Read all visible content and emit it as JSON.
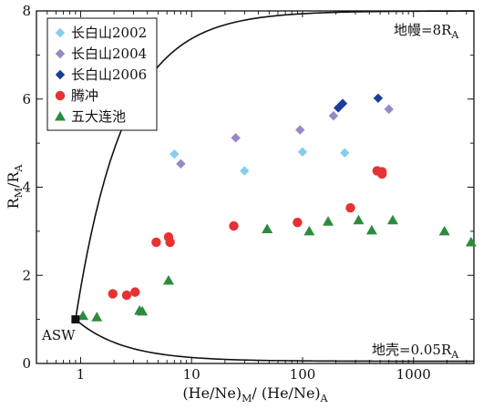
{
  "chart_data": {
    "type": "scatter",
    "xscale": "log",
    "xlim": [
      0.4,
      3500
    ],
    "ylim": [
      0,
      8
    ],
    "x_ticks": [
      {
        "value": 1,
        "label": "1"
      },
      {
        "value": 10,
        "label": "10"
      },
      {
        "value": 100,
        "label": "100"
      },
      {
        "value": 1000,
        "label": "1000"
      }
    ],
    "y_ticks": [
      {
        "value": 0,
        "label": "0"
      },
      {
        "value": 2,
        "label": "2"
      },
      {
        "value": 4,
        "label": "4"
      },
      {
        "value": 6,
        "label": "6"
      },
      {
        "value": 8,
        "label": "8"
      }
    ],
    "xlabel": {
      "main": "(He/Ne)",
      "sub1": "M",
      "mid": "/ (He/Ne)",
      "sub2": "A"
    },
    "ylabel": {
      "main": "R",
      "sub1": "M",
      "mid": "/R",
      "sub2": "A"
    },
    "legend_position": "top-left",
    "series": [
      {
        "name": "长白山2002",
        "marker": "diamond",
        "color": "#88ccee",
        "points": [
          [
            7,
            4.75
          ],
          [
            30,
            4.37
          ],
          [
            100,
            4.8
          ],
          [
            240,
            4.78
          ]
        ]
      },
      {
        "name": "长白山2004",
        "marker": "diamond",
        "color": "#9988c4",
        "points": [
          [
            8,
            4.53
          ],
          [
            25,
            5.12
          ],
          [
            95,
            5.3
          ],
          [
            190,
            5.62
          ],
          [
            600,
            5.77
          ]
        ]
      },
      {
        "name": "长白山2006",
        "marker": "diamond",
        "color": "#1e3d99",
        "points": [
          [
            210,
            5.8
          ],
          [
            230,
            5.9
          ],
          [
            480,
            6.02
          ]
        ]
      },
      {
        "name": "腾冲",
        "marker": "circle",
        "color": "#e63232",
        "points": [
          [
            1.95,
            1.58
          ],
          [
            2.6,
            1.55
          ],
          [
            3.1,
            1.62
          ],
          [
            4.8,
            2.75
          ],
          [
            6.2,
            2.87
          ],
          [
            6.4,
            2.75
          ],
          [
            24,
            3.12
          ],
          [
            90,
            3.2
          ],
          [
            270,
            3.53
          ],
          [
            470,
            4.37
          ],
          [
            520,
            4.3
          ],
          [
            520,
            4.35
          ]
        ]
      },
      {
        "name": "五大连池",
        "marker": "triangle",
        "color": "#2e8b3e",
        "points": [
          [
            1.05,
            1.08
          ],
          [
            1.4,
            1.05
          ],
          [
            3.4,
            1.2
          ],
          [
            3.6,
            1.18
          ],
          [
            6.2,
            1.88
          ],
          [
            48,
            3.05
          ],
          [
            115,
            3.0
          ],
          [
            170,
            3.22
          ],
          [
            320,
            3.25
          ],
          [
            420,
            3.02
          ],
          [
            650,
            3.25
          ],
          [
            1900,
            3.0
          ],
          [
            3300,
            2.75
          ]
        ]
      }
    ],
    "curves": [
      {
        "name": "mantle-mixing-curve",
        "label": "地幔=8R",
        "label_sub": "A",
        "end": "mantle"
      },
      {
        "name": "crust-mixing-curve",
        "label": "地壳=0.05R",
        "label_sub": "A",
        "end": "crust"
      }
    ],
    "asw": {
      "label": "ASW",
      "x": 0.9,
      "y": 1.0
    }
  }
}
